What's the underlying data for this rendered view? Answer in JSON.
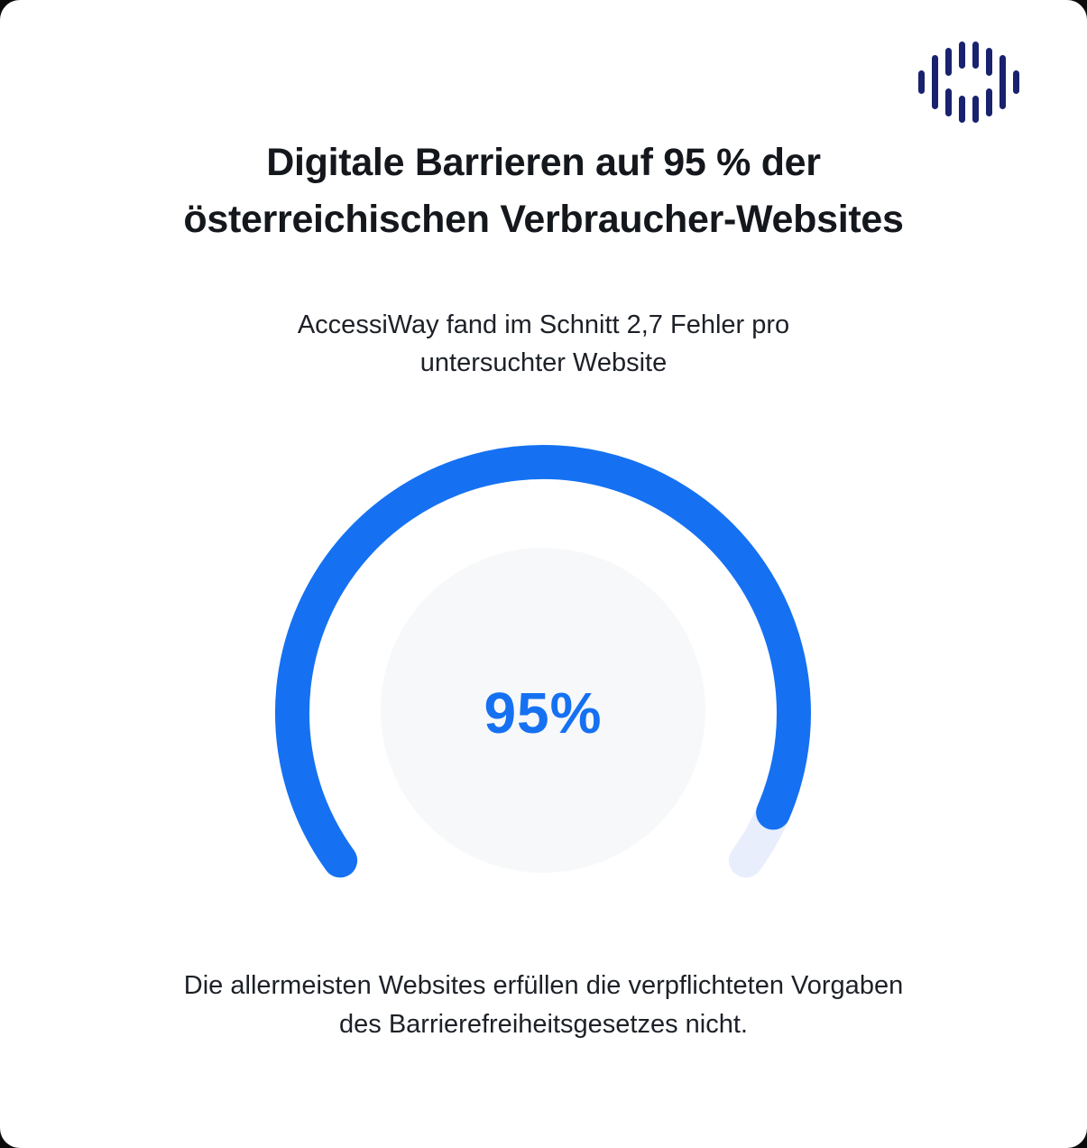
{
  "page": {
    "card_background": "#ffffff",
    "backdrop": "#0b0b0c"
  },
  "logo": {
    "icon": "soundwave-circle-logo",
    "color": "#19226e"
  },
  "header": {
    "title_line1": "Digitale Barrieren auf 95 % der",
    "title_line2": "österreichischen Verbraucher-Websites",
    "subtitle_line1": "AccessiWay fand im Schnitt 2,7 Fehler pro",
    "subtitle_line2": "untersuchter Website"
  },
  "chart_data": {
    "type": "gauge",
    "value": 95,
    "unit": "%",
    "label": "95%",
    "track_sweep_deg": 252,
    "gap_position": "bottom",
    "title": "Digitale Barrieren auf 95 % der österreichischen Verbraucher-Websites",
    "subtitle": "AccessiWay fand im Schnitt 2,7 Fehler pro untersuchter Website",
    "caption": "Die allermeisten Websites erfüllen die verpflichteten Vorgaben des Barrierefreiheitsgesetzes nicht.",
    "colors": {
      "progress": "#1571f2",
      "track": "#e8eefc",
      "inner": "#f7f8f9",
      "value_text": "#1571f2"
    }
  },
  "footer": {
    "line1": "Die allermeisten Websites erfüllen die verpflichteten Vorgaben",
    "line2": "des Barrierefreiheitsgesetzes nicht."
  },
  "colors": {
    "title_text": "#14171c",
    "body_text": "#1d2127",
    "logo_navy": "#19226e",
    "card_bg": "#ffffff"
  }
}
